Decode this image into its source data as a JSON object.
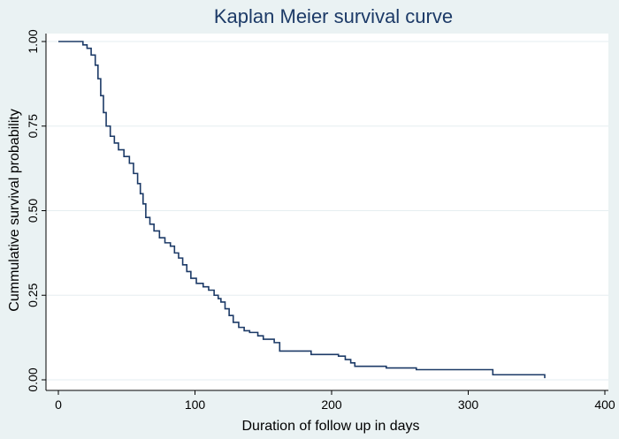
{
  "chart_data": {
    "type": "line",
    "step": true,
    "title": "Kaplan Meier survival curve",
    "xlabel": "Duration of follow up in days",
    "ylabel": "Cummulative survival probability",
    "xlim": [
      0,
      400
    ],
    "ylim": [
      0,
      1
    ],
    "x_ticks": [
      0,
      100,
      200,
      300,
      400
    ],
    "x_tick_labels": [
      "0",
      "100",
      "200",
      "300",
      "400"
    ],
    "y_ticks": [
      0,
      0.25,
      0.5,
      0.75,
      1
    ],
    "y_tick_labels": [
      "0.00",
      "0.25",
      "0.50",
      "0.75",
      "1.00"
    ],
    "grid": "horizontal",
    "legend": "none",
    "colors": {
      "background": "#eaf2f3",
      "plot_area": "#ffffff",
      "grid": "#e6eef0",
      "line": "#1c3a67",
      "title": "#1c3a67"
    },
    "series": [
      {
        "points": [
          [
            0,
            1.0
          ],
          [
            15,
            1.0
          ],
          [
            18,
            0.99
          ],
          [
            21,
            0.98
          ],
          [
            24,
            0.96
          ],
          [
            27,
            0.93
          ],
          [
            29,
            0.89
          ],
          [
            31,
            0.84
          ],
          [
            33,
            0.79
          ],
          [
            35,
            0.75
          ],
          [
            38,
            0.72
          ],
          [
            41,
            0.7
          ],
          [
            44,
            0.68
          ],
          [
            48,
            0.66
          ],
          [
            52,
            0.64
          ],
          [
            55,
            0.61
          ],
          [
            58,
            0.58
          ],
          [
            60,
            0.55
          ],
          [
            62,
            0.52
          ],
          [
            64,
            0.48
          ],
          [
            67,
            0.46
          ],
          [
            70,
            0.44
          ],
          [
            74,
            0.42
          ],
          [
            78,
            0.405
          ],
          [
            82,
            0.395
          ],
          [
            85,
            0.375
          ],
          [
            88,
            0.36
          ],
          [
            91,
            0.34
          ],
          [
            94,
            0.32
          ],
          [
            97,
            0.3
          ],
          [
            101,
            0.285
          ],
          [
            106,
            0.275
          ],
          [
            110,
            0.265
          ],
          [
            114,
            0.25
          ],
          [
            117,
            0.24
          ],
          [
            119,
            0.23
          ],
          [
            122,
            0.21
          ],
          [
            125,
            0.19
          ],
          [
            128,
            0.17
          ],
          [
            132,
            0.155
          ],
          [
            136,
            0.145
          ],
          [
            140,
            0.14
          ],
          [
            146,
            0.13
          ],
          [
            150,
            0.12
          ],
          [
            158,
            0.11
          ],
          [
            162,
            0.085
          ],
          [
            180,
            0.085
          ],
          [
            185,
            0.075
          ],
          [
            205,
            0.07
          ],
          [
            210,
            0.06
          ],
          [
            214,
            0.05
          ],
          [
            217,
            0.04
          ],
          [
            235,
            0.04
          ],
          [
            240,
            0.035
          ],
          [
            262,
            0.03
          ],
          [
            318,
            0.03
          ],
          [
            318,
            0.015
          ],
          [
            356,
            0.015
          ],
          [
            356,
            0.005
          ]
        ]
      }
    ]
  }
}
